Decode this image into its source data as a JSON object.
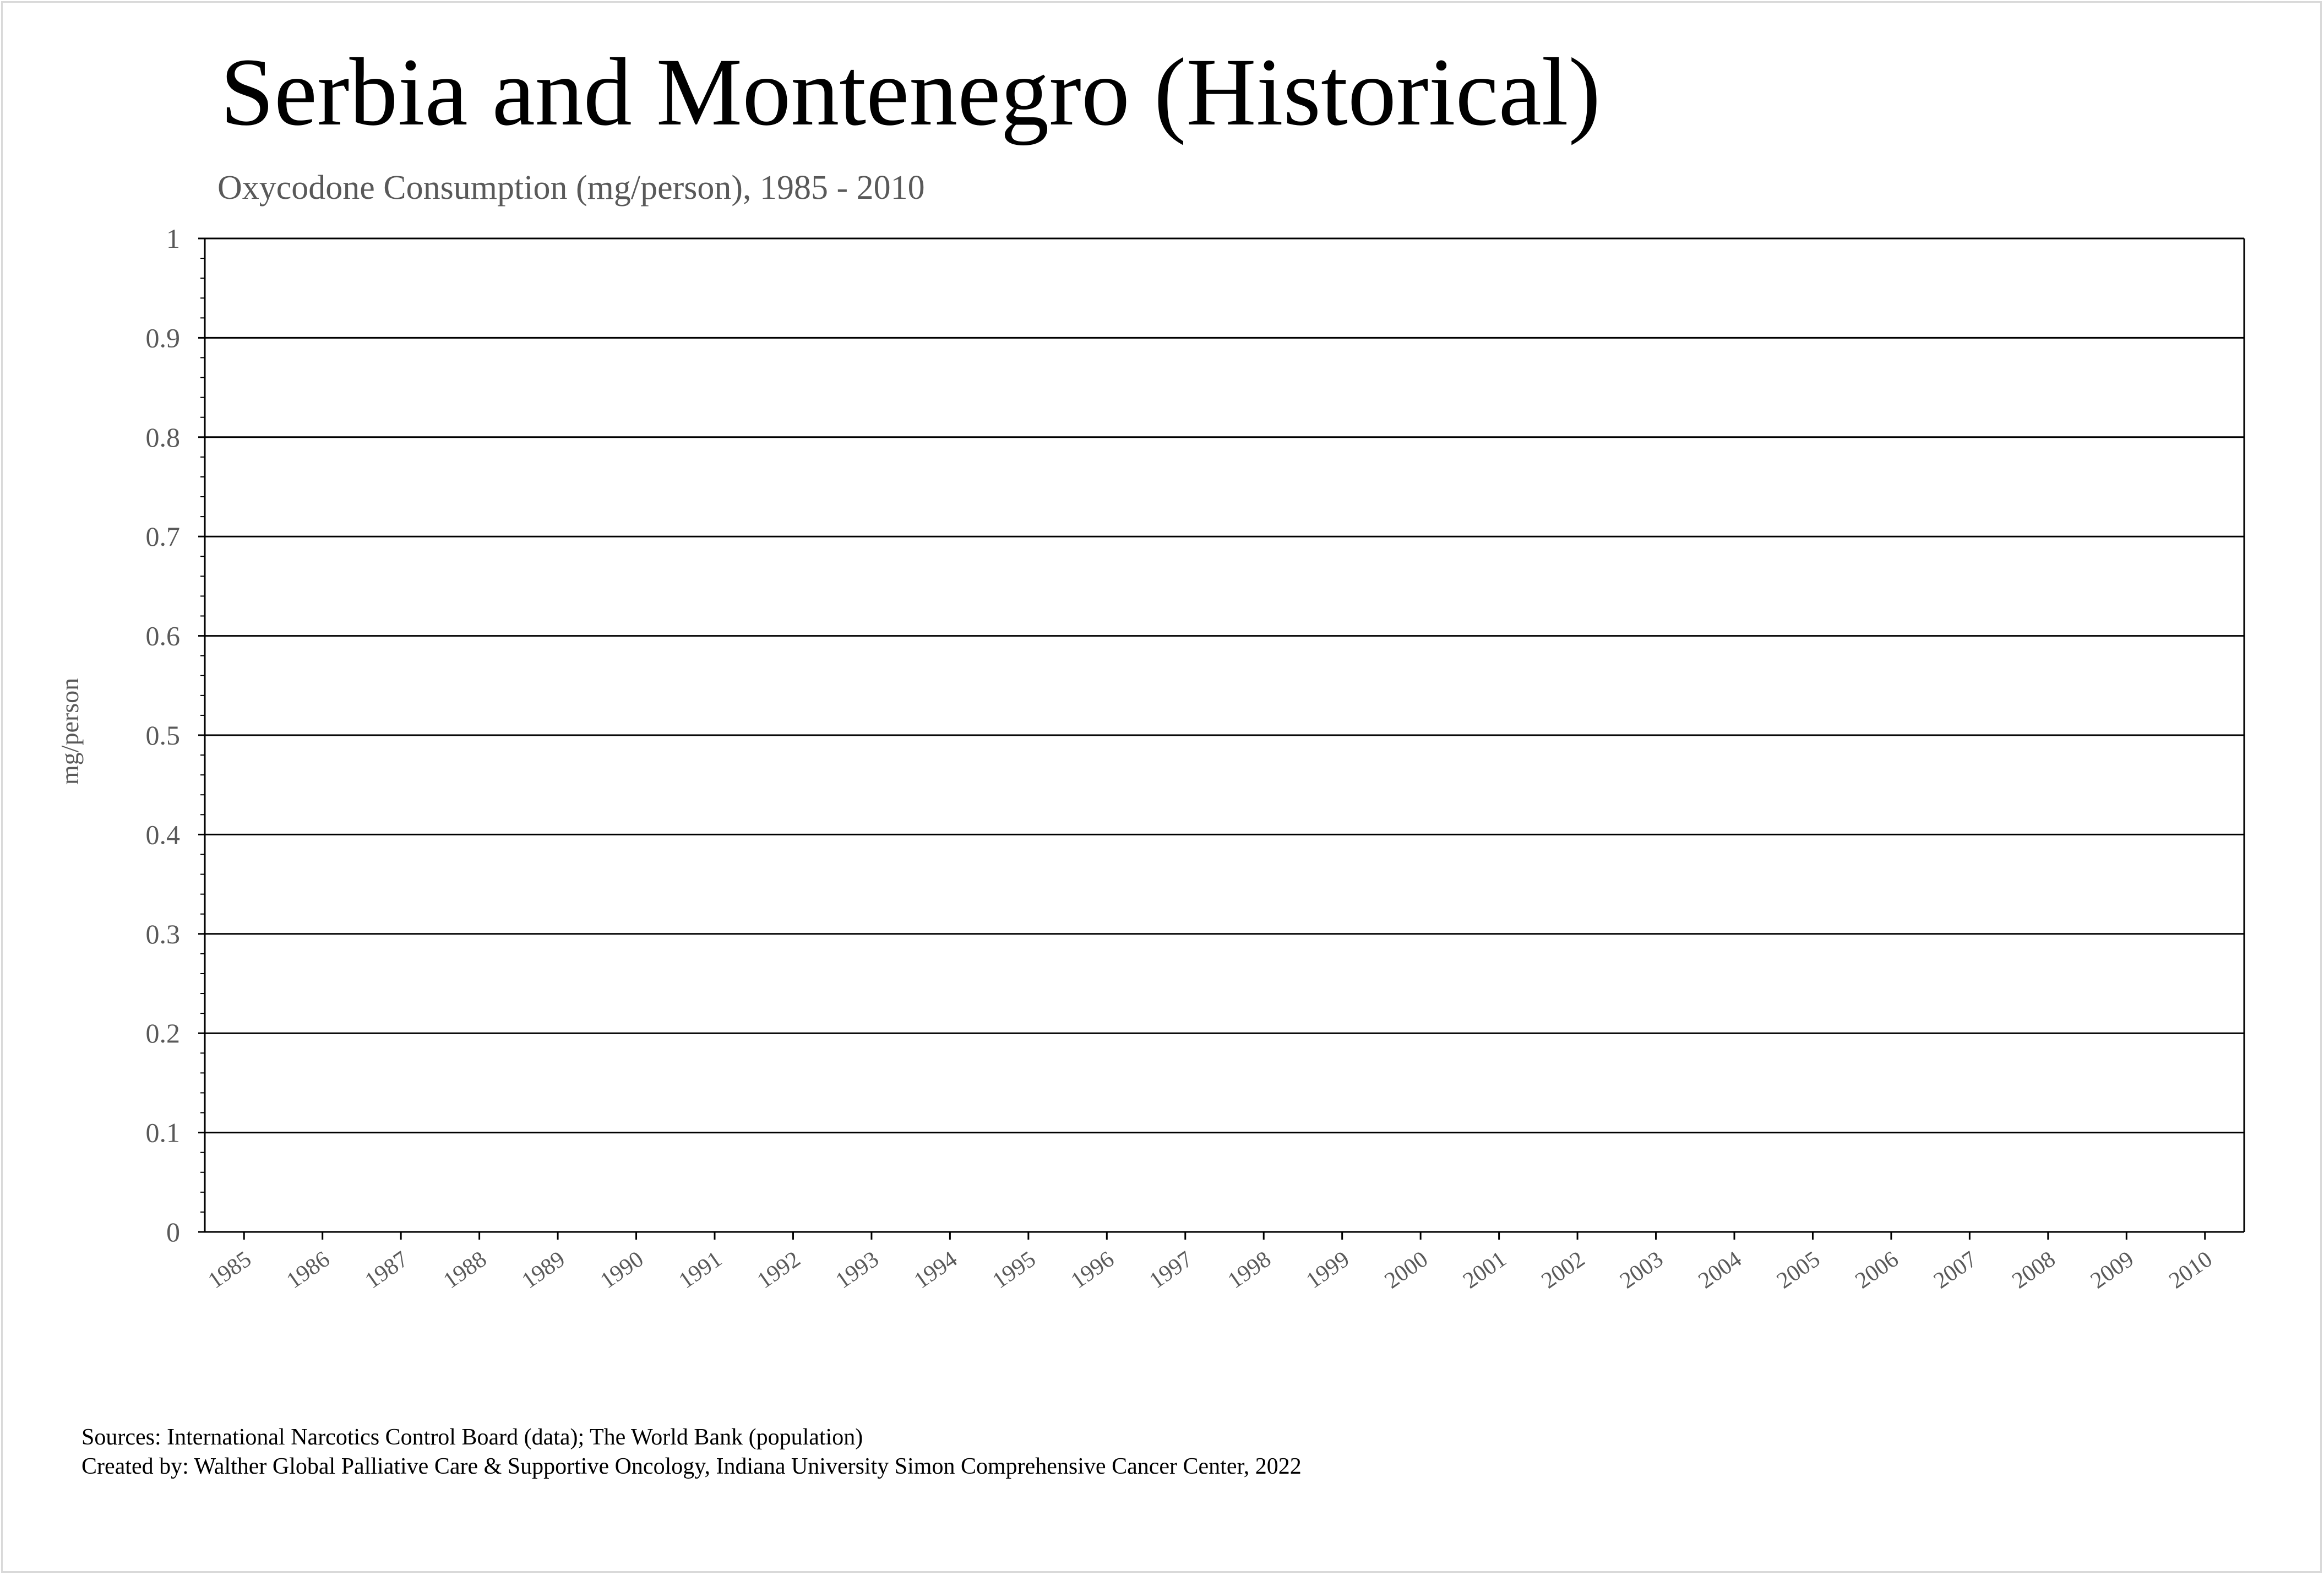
{
  "title": "Serbia and Montenegro (Historical)",
  "subtitle": "Oxycodone Consumption (mg/person), 1985 - 2010",
  "footer": {
    "sources": "Sources: International Narcotics Control Board (data); The World Bank (population)",
    "created_by": "Created by: Walther Global Palliative Care & Supportive Oncology, Indiana University Simon Comprehensive Cancer Center, 2022"
  },
  "chart_data": {
    "type": "line",
    "title": "Serbia and Montenegro (Historical)",
    "subtitle": "Oxycodone Consumption (mg/person), 1985 - 2010",
    "xlabel": "",
    "ylabel": "mg/person",
    "categories": [
      "1985",
      "1986",
      "1987",
      "1988",
      "1989",
      "1990",
      "1991",
      "1992",
      "1993",
      "1994",
      "1995",
      "1996",
      "1997",
      "1998",
      "1999",
      "2000",
      "2001",
      "2002",
      "2003",
      "2004",
      "2005",
      "2006",
      "2007",
      "2008",
      "2009",
      "2010"
    ],
    "series": [],
    "ylim": [
      0,
      1
    ],
    "yticks": [
      "0",
      "0.1",
      "0.2",
      "0.3",
      "0.4",
      "0.5",
      "0.6",
      "0.7",
      "0.8",
      "0.9",
      "1"
    ],
    "grid": "horizontal",
    "legend": "none",
    "colors": {
      "grid": "#000000",
      "tick_text": "#595959",
      "border": "#d9d9d9"
    }
  }
}
